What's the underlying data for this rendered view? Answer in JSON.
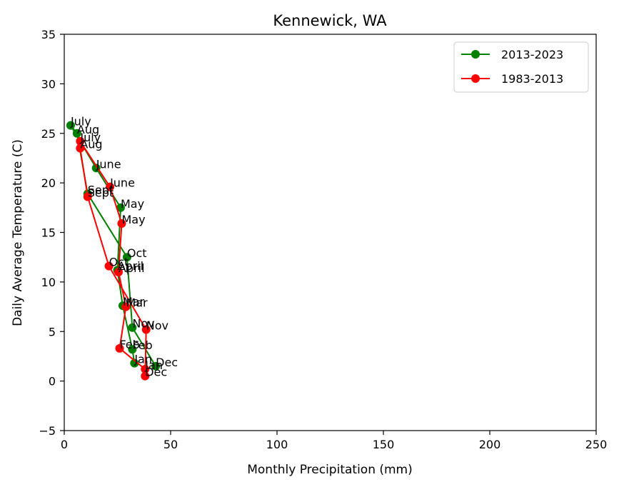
{
  "chart_data": {
    "type": "line",
    "title": "Kennewick, WA",
    "xlabel": "Monthly Precipitation (mm)",
    "ylabel": "Daily Average Temperature (C)",
    "xlim": [
      0,
      250
    ],
    "ylim": [
      -5,
      35
    ],
    "xticks": [
      "0",
      "50",
      "100",
      "150",
      "200",
      "250"
    ],
    "xtick_values": [
      0,
      50,
      100,
      150,
      200,
      250
    ],
    "yticks": [
      "−5",
      "0",
      "5",
      "10",
      "15",
      "20",
      "25",
      "30",
      "35"
    ],
    "ytick_values": [
      -5,
      0,
      5,
      10,
      15,
      20,
      25,
      30,
      35
    ],
    "grid": false,
    "legend_position": "top-right",
    "series": [
      {
        "name": "2013-2023",
        "color": "#008000",
        "points": [
          {
            "label": "Jan",
            "x": 33,
            "y": 1.8
          },
          {
            "label": "Feb",
            "x": 32,
            "y": 3.2
          },
          {
            "label": "Mar",
            "x": 27.5,
            "y": 7.6
          },
          {
            "label": "April",
            "x": 25,
            "y": 11.2
          },
          {
            "label": "May",
            "x": 26.5,
            "y": 17.5
          },
          {
            "label": "June",
            "x": 15,
            "y": 21.5
          },
          {
            "label": "July",
            "x": 3,
            "y": 25.8
          },
          {
            "label": "Aug",
            "x": 6,
            "y": 25
          },
          {
            "label": "Sept",
            "x": 11,
            "y": 18.9
          },
          {
            "label": "Oct",
            "x": 29.5,
            "y": 12.5
          },
          {
            "label": "Nov",
            "x": 32,
            "y": 5.4
          },
          {
            "label": "Dec",
            "x": 43,
            "y": 1.5
          }
        ]
      },
      {
        "name": "1983-2013",
        "color": "#ff0000",
        "points": [
          {
            "label": "Jan",
            "x": 38,
            "y": 1.2
          },
          {
            "label": "Feb",
            "x": 26,
            "y": 3.3
          },
          {
            "label": "Mar",
            "x": 29,
            "y": 7.5
          },
          {
            "label": "April",
            "x": 25.5,
            "y": 11
          },
          {
            "label": "May",
            "x": 27,
            "y": 15.9
          },
          {
            "label": "June",
            "x": 21.5,
            "y": 19.6
          },
          {
            "label": "July",
            "x": 7.5,
            "y": 24.2
          },
          {
            "label": "Aug",
            "x": 7.5,
            "y": 23.5
          },
          {
            "label": "Sept",
            "x": 11,
            "y": 18.6
          },
          {
            "label": "Oct",
            "x": 21,
            "y": 11.6
          },
          {
            "label": "Nov",
            "x": 38.5,
            "y": 5.2
          },
          {
            "label": "Dec",
            "x": 38,
            "y": 0.5
          }
        ]
      }
    ]
  }
}
